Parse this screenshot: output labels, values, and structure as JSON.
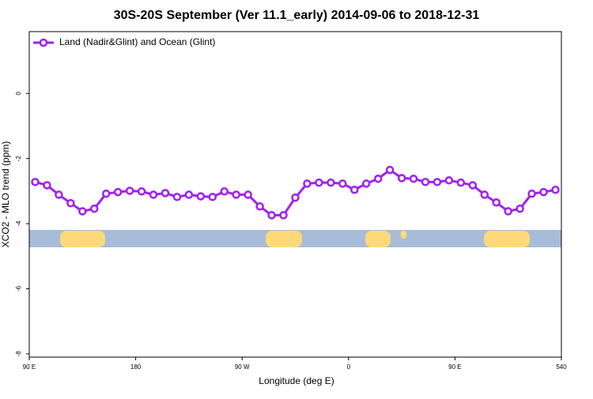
{
  "chart_data": {
    "type": "line",
    "title": "30S-20S September (Ver 11.1_early)   2014-09-06 to 2018-12-31",
    "x_label": "Longitude (deg E)",
    "y_label": "XCO2 - MLO trend (ppm)",
    "x": [
      95,
      105,
      115,
      125,
      135,
      145,
      155,
      165,
      175,
      185,
      195,
      205,
      215,
      225,
      235,
      245,
      255,
      265,
      275,
      285,
      295,
      305,
      315,
      325,
      335,
      345,
      355,
      365,
      375,
      385,
      395,
      405,
      415,
      425,
      435,
      445,
      455,
      465,
      475,
      485,
      495,
      505,
      515,
      525,
      535
    ],
    "series": [
      {
        "name": "Land (Nadir&Glint) and Ocean (Glint)",
        "color": "#a020f0",
        "values": [
          -2.72,
          -2.82,
          -3.11,
          -3.37,
          -3.62,
          -3.54,
          -3.08,
          -3.03,
          -2.99,
          -3.01,
          -3.11,
          -3.06,
          -3.18,
          -3.11,
          -3.16,
          -3.18,
          -3.01,
          -3.11,
          -3.11,
          -3.47,
          -3.74,
          -3.74,
          -3.2,
          -2.77,
          -2.74,
          -2.74,
          -2.77,
          -2.96,
          -2.77,
          -2.62,
          -2.35,
          -2.6,
          -2.62,
          -2.72,
          -2.72,
          -2.67,
          -2.74,
          -2.82,
          -3.11,
          -3.35,
          -3.62,
          -3.54,
          -3.08,
          -3.03,
          -2.96
        ]
      }
    ],
    "xlim": [
      90,
      540
    ],
    "xticks": [
      {
        "value": 90,
        "label": "90 E"
      },
      180,
      {
        "value": 270,
        "label": "90 W"
      },
      {
        "value": 360,
        "label": "0"
      },
      {
        "value": 450,
        "label": "90 E"
      },
      540
    ],
    "ylim": [
      -8.1,
      1.9
    ],
    "yticks": [
      -8,
      -6,
      -4,
      -2,
      0
    ],
    "legend": "top-left"
  }
}
